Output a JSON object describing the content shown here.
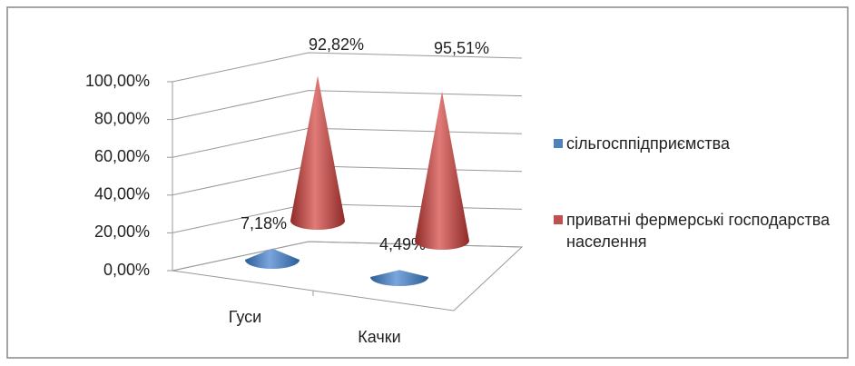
{
  "chart_data": {
    "type": "cone3d",
    "categories": [
      "Гуси",
      "Качки"
    ],
    "series": [
      {
        "name": "сільгосппідприємства",
        "color": "#4f81bd",
        "values": [
          7.18,
          4.49
        ],
        "value_labels": [
          "7,18%",
          "4,49%"
        ]
      },
      {
        "name": "приватні фермерські господарства населення",
        "color": "#c0504d",
        "values": [
          92.82,
          95.51
        ],
        "value_labels": [
          "92,82%",
          "95,51%"
        ]
      }
    ],
    "ylim": [
      0,
      100
    ],
    "yticks": [
      {
        "value": 0,
        "label": "0,00%"
      },
      {
        "value": 20,
        "label": "20,00%"
      },
      {
        "value": 40,
        "label": "40,00%"
      },
      {
        "value": 60,
        "label": "60,00%"
      },
      {
        "value": 80,
        "label": "80,00%"
      },
      {
        "value": 100,
        "label": "100,00%"
      }
    ],
    "grid": true,
    "legend": "right"
  }
}
